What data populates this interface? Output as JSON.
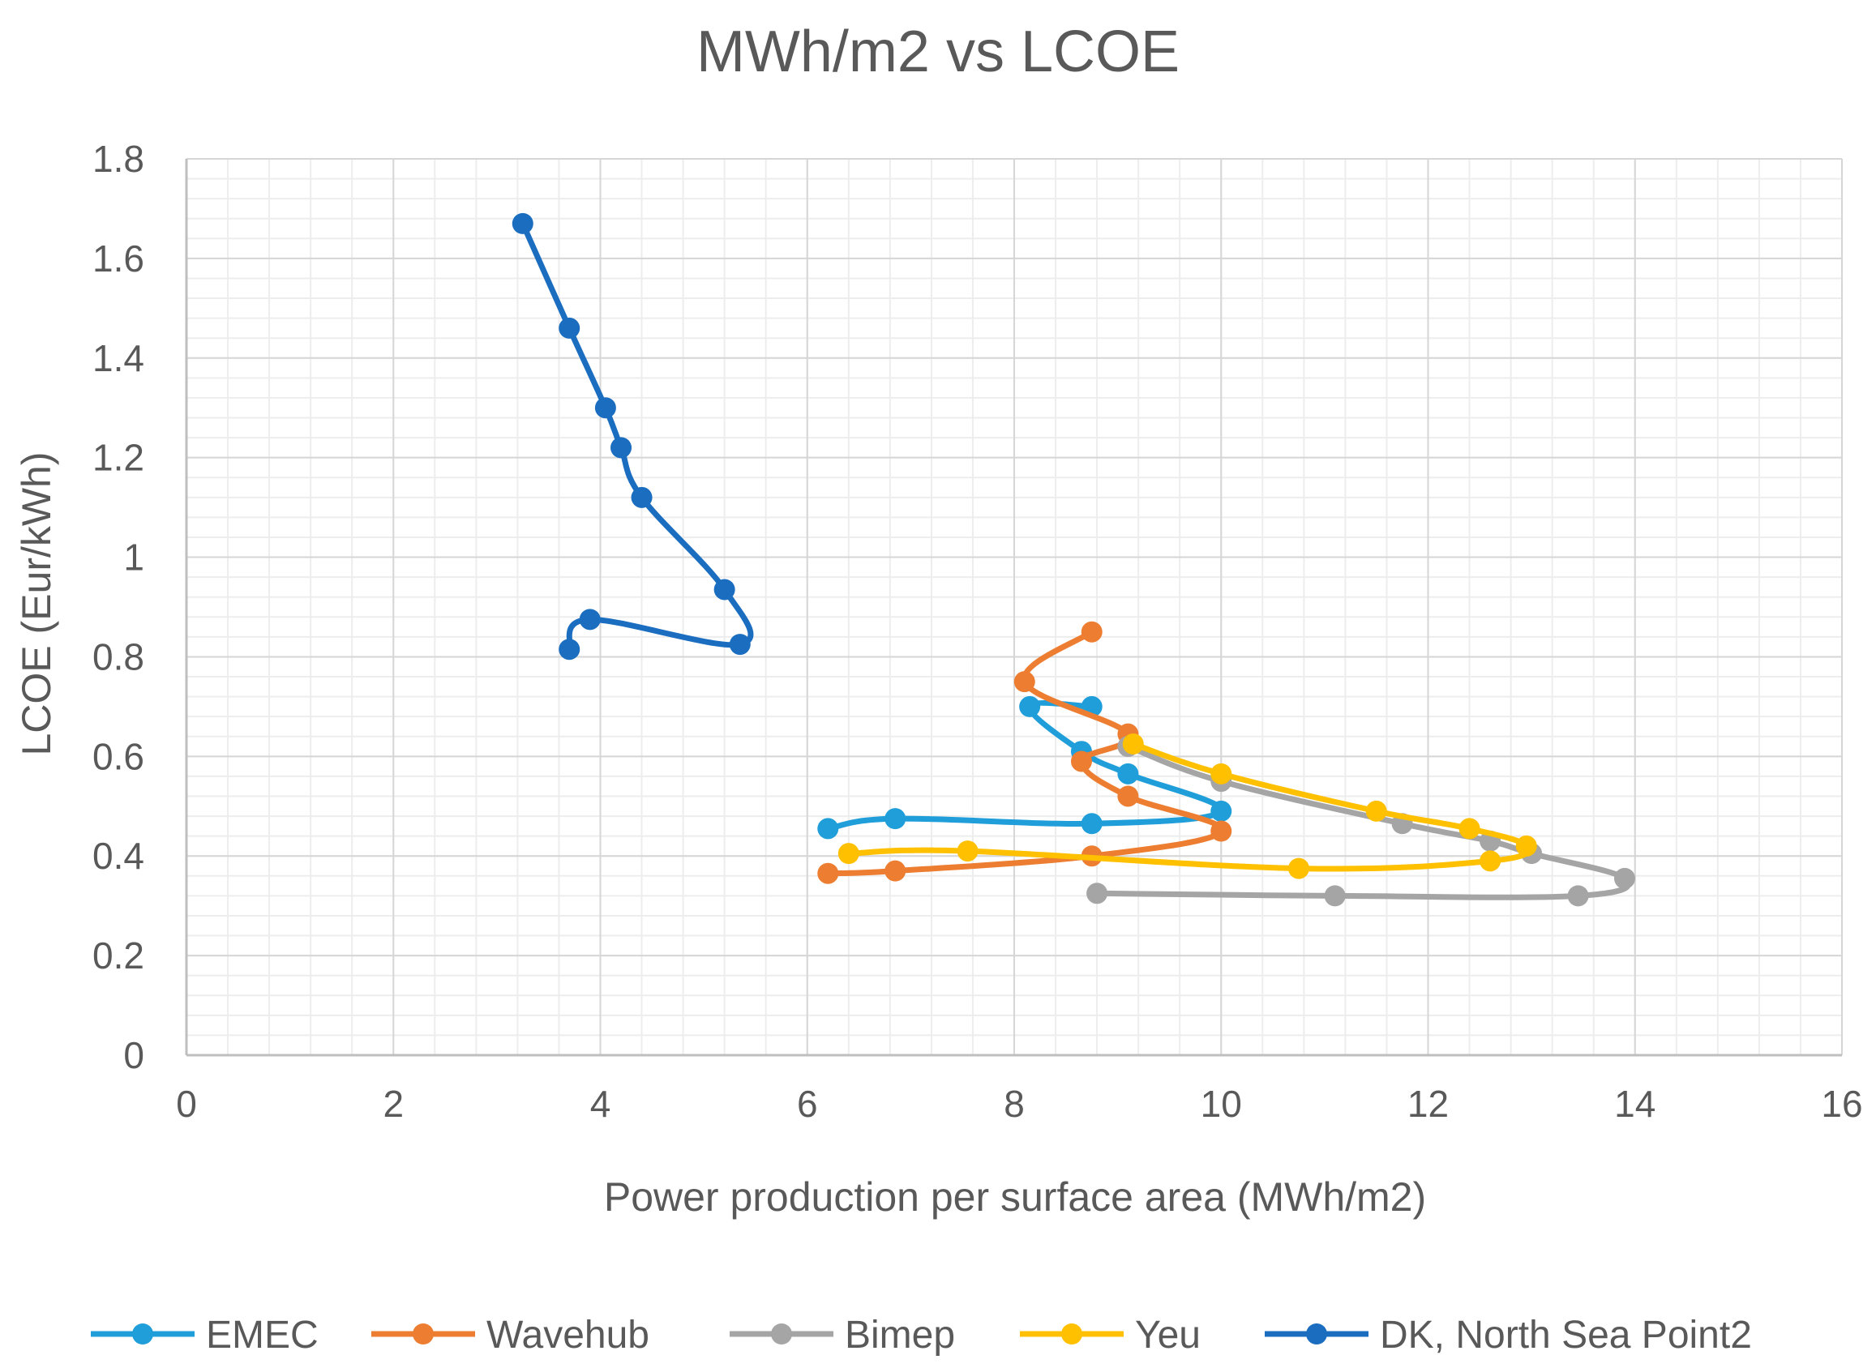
{
  "chart_data": {
    "type": "scatter",
    "title": "MWh/m2 vs LCOE",
    "xlabel": "Power production per surface area (MWh/m2)",
    "ylabel": "LCOE (Eur/kWh)",
    "xlim": [
      0,
      16
    ],
    "ylim": [
      0,
      1.8
    ],
    "xticks": [
      0,
      2,
      4,
      6,
      8,
      10,
      12,
      14,
      16
    ],
    "yticks": [
      0,
      0.2,
      0.4,
      0.6,
      0.8,
      1,
      1.2,
      1.4,
      1.6,
      1.8
    ],
    "xtick_labels": [
      "0",
      "2",
      "4",
      "6",
      "8",
      "10",
      "12",
      "14",
      "16"
    ],
    "ytick_labels": [
      "0",
      "0.2",
      "0.4",
      "0.6",
      "0.8",
      "1",
      "1.2",
      "1.4",
      "1.6",
      "1.8"
    ],
    "grid": true,
    "legend_position": "bottom",
    "series": [
      {
        "name": "EMEC",
        "color": "#1F9ED9",
        "points": [
          [
            8.75,
            0.7
          ],
          [
            8.15,
            0.7
          ],
          [
            8.65,
            0.61
          ],
          [
            9.1,
            0.565
          ],
          [
            10.0,
            0.49
          ],
          [
            8.75,
            0.465
          ],
          [
            6.85,
            0.475
          ],
          [
            6.2,
            0.455
          ]
        ]
      },
      {
        "name": "Wavehub",
        "color": "#ED7D31",
        "points": [
          [
            8.75,
            0.85
          ],
          [
            8.1,
            0.75
          ],
          [
            9.1,
            0.645
          ],
          [
            8.65,
            0.59
          ],
          [
            9.1,
            0.52
          ],
          [
            10.0,
            0.45
          ],
          [
            8.75,
            0.4
          ],
          [
            6.85,
            0.37
          ],
          [
            6.2,
            0.365
          ]
        ]
      },
      {
        "name": "Bimep",
        "color": "#A5A5A5",
        "points": [
          [
            9.1,
            0.62
          ],
          [
            10.0,
            0.55
          ],
          [
            11.75,
            0.465
          ],
          [
            12.6,
            0.43
          ],
          [
            13.0,
            0.405
          ],
          [
            13.9,
            0.355
          ],
          [
            13.45,
            0.32
          ],
          [
            11.1,
            0.32
          ],
          [
            8.8,
            0.325
          ]
        ]
      },
      {
        "name": "Yeu",
        "color": "#FFC000",
        "points": [
          [
            9.15,
            0.625
          ],
          [
            10.0,
            0.565
          ],
          [
            11.5,
            0.49
          ],
          [
            12.4,
            0.455
          ],
          [
            12.95,
            0.42
          ],
          [
            12.6,
            0.39
          ],
          [
            10.75,
            0.375
          ],
          [
            7.55,
            0.41
          ],
          [
            6.4,
            0.405
          ]
        ]
      },
      {
        "name": "DK, North Sea Point2",
        "color": "#1A6DBF",
        "points": [
          [
            3.25,
            1.67
          ],
          [
            3.7,
            1.46
          ],
          [
            4.05,
            1.3
          ],
          [
            4.2,
            1.22
          ],
          [
            4.4,
            1.12
          ],
          [
            5.2,
            0.935
          ],
          [
            5.35,
            0.825
          ],
          [
            3.9,
            0.875
          ],
          [
            3.7,
            0.815
          ]
        ]
      }
    ]
  }
}
